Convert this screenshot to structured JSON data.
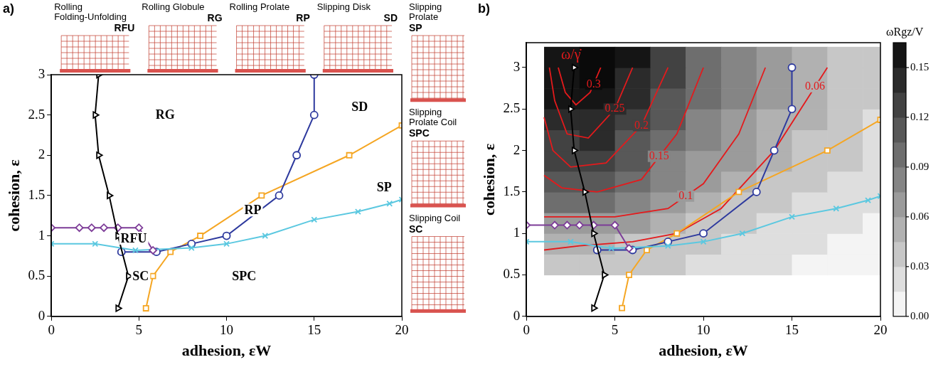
{
  "chart_data": [
    {
      "type": "line",
      "panel": "a)",
      "xlabel": "adhesion, εW",
      "ylabel": "cohesion, ε",
      "xlim": [
        0,
        20
      ],
      "xticks": [
        0,
        5,
        10,
        15,
        20
      ],
      "ylim": [
        0,
        3
      ],
      "yticks": [
        0,
        0.5,
        1,
        1.5,
        2,
        2.5,
        3
      ],
      "grid": false,
      "series": [
        {
          "color": "#000000",
          "marker": "triangle-right",
          "line_style": "solid",
          "x": [
            2.7,
            2.5,
            2.7,
            3.3,
            3.8,
            4.4,
            3.8
          ],
          "y": [
            3,
            2.5,
            2,
            1.5,
            1,
            0.5,
            0.1
          ]
        },
        {
          "color": "#7d3c98",
          "marker": "diamond",
          "line_style": "solid",
          "x": [
            0,
            1.6,
            2.3,
            3,
            3.8,
            5,
            5.8
          ],
          "y": [
            1.1,
            1.1,
            1.1,
            1.1,
            1.1,
            1.1,
            0.82
          ]
        },
        {
          "color": "#5bc8e0",
          "marker": "x",
          "line_style": "solid",
          "x": [
            0,
            2.5,
            4.8,
            8,
            10,
            12.2,
            15,
            17.5,
            19.3,
            20
          ],
          "y": [
            0.9,
            0.9,
            0.82,
            0.85,
            0.9,
            1,
            1.2,
            1.3,
            1.4,
            1.45
          ]
        },
        {
          "color": "#2e3a9e",
          "marker": "circle",
          "line_style": "solid",
          "x": [
            4,
            6,
            8,
            10,
            13,
            14,
            15,
            15
          ],
          "y": [
            0.8,
            0.8,
            0.9,
            1,
            1.5,
            2,
            2.5,
            3
          ]
        },
        {
          "color": "#f5a623",
          "marker": "square",
          "line_style": "solid",
          "x": [
            5.4,
            5.8,
            6.8,
            8.5,
            12,
            17,
            20
          ],
          "y": [
            0.1,
            0.5,
            0.8,
            1,
            1.5,
            2,
            2.37
          ]
        }
      ],
      "region_labels": [
        {
          "text": "RG",
          "x": 6.5,
          "y": 2.5
        },
        {
          "text": "SD",
          "x": 17.6,
          "y": 2.6
        },
        {
          "text": "SP",
          "x": 19,
          "y": 1.6
        },
        {
          "text": "RP",
          "x": 11.5,
          "y": 1.32
        },
        {
          "text": "RFU",
          "x": 4.7,
          "y": 0.97
        },
        {
          "text": "SC",
          "x": 5.1,
          "y": 0.5
        },
        {
          "text": "SPC",
          "x": 11,
          "y": 0.5
        }
      ],
      "snapshots_top": [
        {
          "title": "Rolling Folding-Unfolding",
          "code": "RFU"
        },
        {
          "title": "Rolling Globule",
          "code": "RG"
        },
        {
          "title": "Rolling Prolate",
          "code": "RP"
        },
        {
          "title": "Slipping Disk",
          "code": "SD"
        }
      ],
      "snapshots_right": [
        {
          "title": "Slipping Prolate",
          "code": "SP"
        },
        {
          "title": "Slipping Prolate Coil",
          "code": "SPC"
        },
        {
          "title": "Slipping Coil",
          "code": "SC"
        }
      ]
    },
    {
      "type": "contour",
      "panel": "b)",
      "xlabel": "adhesion, εW",
      "ylabel": "cohesion, ε",
      "xlim": [
        0,
        20
      ],
      "xticks": [
        0,
        5,
        10,
        15,
        20
      ],
      "ylim": [
        0,
        3.3
      ],
      "yticks": [
        0,
        0.5,
        1,
        1.5,
        2,
        2.5,
        3
      ],
      "grid": false,
      "series": [
        {
          "color": "#000000",
          "marker": "triangle-right",
          "line_style": "solid",
          "x": [
            2.7,
            2.5,
            2.7,
            3.3,
            3.8,
            4.4,
            3.8
          ],
          "y": [
            3,
            2.5,
            2,
            1.5,
            1,
            0.5,
            0.1
          ]
        },
        {
          "color": "#7d3c98",
          "marker": "diamond",
          "line_style": "solid",
          "x": [
            0,
            1.6,
            2.3,
            3,
            3.8,
            5,
            5.8
          ],
          "y": [
            1.1,
            1.1,
            1.1,
            1.1,
            1.1,
            1.1,
            0.82
          ]
        },
        {
          "color": "#5bc8e0",
          "marker": "x",
          "line_style": "solid",
          "x": [
            0,
            2.5,
            4.8,
            8,
            10,
            12.2,
            15,
            17.5,
            19.3,
            20
          ],
          "y": [
            0.9,
            0.9,
            0.82,
            0.85,
            0.9,
            1,
            1.2,
            1.3,
            1.4,
            1.45
          ]
        },
        {
          "color": "#2e3a9e",
          "marker": "circle",
          "line_style": "solid",
          "x": [
            4,
            6,
            8,
            10,
            13,
            14,
            15,
            15
          ],
          "y": [
            0.8,
            0.8,
            0.9,
            1,
            1.5,
            2,
            2.5,
            3
          ]
        },
        {
          "color": "#f5a623",
          "marker": "square",
          "line_style": "solid",
          "x": [
            5.4,
            5.8,
            6.8,
            8.5,
            12,
            17,
            20
          ],
          "y": [
            0.1,
            0.5,
            0.8,
            1,
            1.5,
            2,
            2.37
          ]
        }
      ],
      "heatmap": {
        "x": [
          2,
          4,
          6,
          8,
          10,
          12,
          14,
          16,
          18,
          20
        ],
        "y": [
          0.625,
          0.875,
          1.125,
          1.375,
          1.625,
          1.875,
          2.125,
          2.375,
          2.625,
          2.875,
          3.125
        ],
        "cells": [
          [
            0.04,
            0.04,
            0.03,
            0.03,
            0.02,
            0.02,
            0.015,
            0.01,
            0.01,
            0.005
          ],
          [
            0.05,
            0.05,
            0.04,
            0.035,
            0.03,
            0.025,
            0.02,
            0.015,
            0.01,
            0.01
          ],
          [
            0.07,
            0.07,
            0.06,
            0.05,
            0.04,
            0.03,
            0.025,
            0.02,
            0.015,
            0.01
          ],
          [
            0.09,
            0.09,
            0.075,
            0.06,
            0.05,
            0.04,
            0.03,
            0.025,
            0.02,
            0.015
          ],
          [
            0.11,
            0.11,
            0.09,
            0.075,
            0.06,
            0.05,
            0.04,
            0.03,
            0.025,
            0.02
          ],
          [
            0.12,
            0.125,
            0.105,
            0.085,
            0.07,
            0.06,
            0.045,
            0.035,
            0.03,
            0.02
          ],
          [
            0.13,
            0.135,
            0.115,
            0.095,
            0.08,
            0.065,
            0.05,
            0.04,
            0.03,
            0.025
          ],
          [
            0.14,
            0.145,
            0.125,
            0.105,
            0.085,
            0.07,
            0.055,
            0.045,
            0.035,
            0.025
          ],
          [
            0.15,
            0.155,
            0.135,
            0.11,
            0.09,
            0.075,
            0.06,
            0.05,
            0.035,
            0.03
          ],
          [
            0.155,
            0.165,
            0.145,
            0.12,
            0.095,
            0.08,
            0.065,
            0.05,
            0.04,
            0.03
          ],
          [
            0.16,
            0.17,
            0.15,
            0.125,
            0.1,
            0.085,
            0.07,
            0.055,
            0.04,
            0.03
          ]
        ]
      },
      "colorbar": {
        "label": "ωRgz/V",
        "range": [
          0,
          0.165
        ],
        "ticks": [
          {
            "value": 0,
            "label": "0.00"
          },
          0.03,
          0.06,
          0.09,
          0.12,
          0.15
        ]
      },
      "contour_title": "ω/γ̇",
      "contours": [
        {
          "level": 0.3,
          "color": "#e41a1c",
          "x": [
            1.8,
            2.2,
            2.8,
            3.6,
            4.2
          ],
          "y": [
            3,
            2.7,
            2.55,
            2.7,
            3
          ],
          "label_at": [
            3.8,
            2.8
          ]
        },
        {
          "level": 0.25,
          "color": "#e41a1c",
          "x": [
            1.3,
            1.6,
            2.3,
            3.5,
            5,
            6
          ],
          "y": [
            3,
            2.6,
            2.2,
            2.15,
            2.5,
            3
          ],
          "label_at": [
            5,
            2.5
          ]
        },
        {
          "level": 0.2,
          "color": "#e41a1c",
          "x": [
            1,
            1.5,
            2.5,
            4.5,
            6.5,
            8
          ],
          "y": [
            2.4,
            2,
            1.8,
            1.85,
            2.3,
            3
          ],
          "label_at": [
            6.5,
            2.3
          ]
        },
        {
          "level": 0.15,
          "color": "#e41a1c",
          "x": [
            1,
            2,
            4,
            6.5,
            8.5,
            10
          ],
          "y": [
            1.7,
            1.55,
            1.5,
            1.65,
            2.2,
            3
          ],
          "label_at": [
            7.5,
            1.93
          ]
        },
        {
          "level": 0.1,
          "color": "#e41a1c",
          "x": [
            1,
            2.5,
            5,
            8,
            10,
            12,
            13.5
          ],
          "y": [
            1.2,
            1.2,
            1.2,
            1.3,
            1.6,
            2.2,
            3
          ],
          "label_at": [
            9,
            1.45
          ]
        },
        {
          "level": 0.06,
          "color": "#e41a1c",
          "x": [
            1,
            3,
            6,
            8.5,
            11,
            14,
            17
          ],
          "y": [
            0.8,
            0.85,
            0.9,
            1,
            1.3,
            2,
            3
          ],
          "label_at": [
            16.3,
            2.77
          ]
        }
      ]
    }
  ]
}
